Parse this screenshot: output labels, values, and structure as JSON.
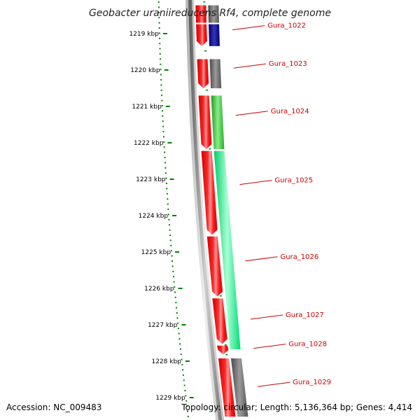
{
  "title": "Geobacter uraniireducens Rf4, complete genome",
  "accession": "Accession: NC_009483",
  "summary": "Topology: circular; Length: 5,136,364 bp; Genes: 4,414",
  "colors": {
    "strand_forward": "#ff0000",
    "green": "#33cc33",
    "spring_green": "#00ff88",
    "dark_gray": "#666666",
    "navy": "#00008b",
    "label": "#cc0000",
    "tick": "#008000"
  },
  "kbp_labels": [
    {
      "kbp": 1219,
      "label": "1219 kbp"
    },
    {
      "kbp": 1220,
      "label": "1220 kbp"
    },
    {
      "kbp": 1221,
      "label": "1221 kbp"
    },
    {
      "kbp": 1222,
      "label": "1222 kbp"
    },
    {
      "kbp": 1223,
      "label": "1223 kbp"
    },
    {
      "kbp": 1224,
      "label": "1224 kbp"
    },
    {
      "kbp": 1225,
      "label": "1225 kbp"
    },
    {
      "kbp": 1226,
      "label": "1226 kbp"
    },
    {
      "kbp": 1227,
      "label": "1227 kbp"
    },
    {
      "kbp": 1228,
      "label": "1228 kbp"
    },
    {
      "kbp": 1229,
      "label": "1229 kbp"
    }
  ],
  "genes": [
    {
      "name": "Gura_1022",
      "label_kbp": 1219.05
    },
    {
      "name": "Gura_1023",
      "label_kbp": 1220.1
    },
    {
      "name": "Gura_1024",
      "label_kbp": 1221.4
    },
    {
      "name": "Gura_1025",
      "label_kbp": 1223.3
    },
    {
      "name": "Gura_1026",
      "label_kbp": 1225.4
    },
    {
      "name": "Gura_1027",
      "label_kbp": 1227.0
    },
    {
      "name": "Gura_1028",
      "label_kbp": 1227.8
    },
    {
      "name": "Gura_1029",
      "label_kbp": 1228.85
    }
  ],
  "features": [
    {
      "track": "red",
      "start": 1218.3,
      "end": 1218.78,
      "color": "red"
    },
    {
      "track": "red",
      "start": 1218.82,
      "end": 1219.42,
      "color": "red",
      "arrow": true
    },
    {
      "track": "col",
      "start": 1218.3,
      "end": 1218.78,
      "color": "dark_gray"
    },
    {
      "track": "col",
      "start": 1218.82,
      "end": 1219.42,
      "color": "navy"
    },
    {
      "track": "red",
      "start": 1219.78,
      "end": 1220.58,
      "color": "red",
      "arrow": true
    },
    {
      "track": "col",
      "start": 1219.78,
      "end": 1220.58,
      "color": "dark_gray"
    },
    {
      "track": "red",
      "start": 1220.78,
      "end": 1222.25,
      "color": "red",
      "arrow": true
    },
    {
      "track": "col",
      "start": 1220.78,
      "end": 1222.25,
      "color": "green"
    },
    {
      "track": "red",
      "start": 1222.3,
      "end": 1224.6,
      "color": "red",
      "arrow": true
    },
    {
      "track": "col",
      "start": 1222.3,
      "end": 1227.75,
      "color": "spring_green"
    },
    {
      "track": "red",
      "start": 1224.65,
      "end": 1226.3,
      "color": "red",
      "arrow": true
    },
    {
      "track": "red",
      "start": 1226.35,
      "end": 1227.6,
      "color": "red",
      "arrow": true
    },
    {
      "track": "red",
      "start": 1227.65,
      "end": 1227.9,
      "color": "red",
      "arrow": true
    },
    {
      "track": "red",
      "start": 1228.0,
      "end": 1229.6,
      "color": "red"
    },
    {
      "track": "col",
      "start": 1228.0,
      "end": 1229.6,
      "color": "dark_gray"
    }
  ]
}
